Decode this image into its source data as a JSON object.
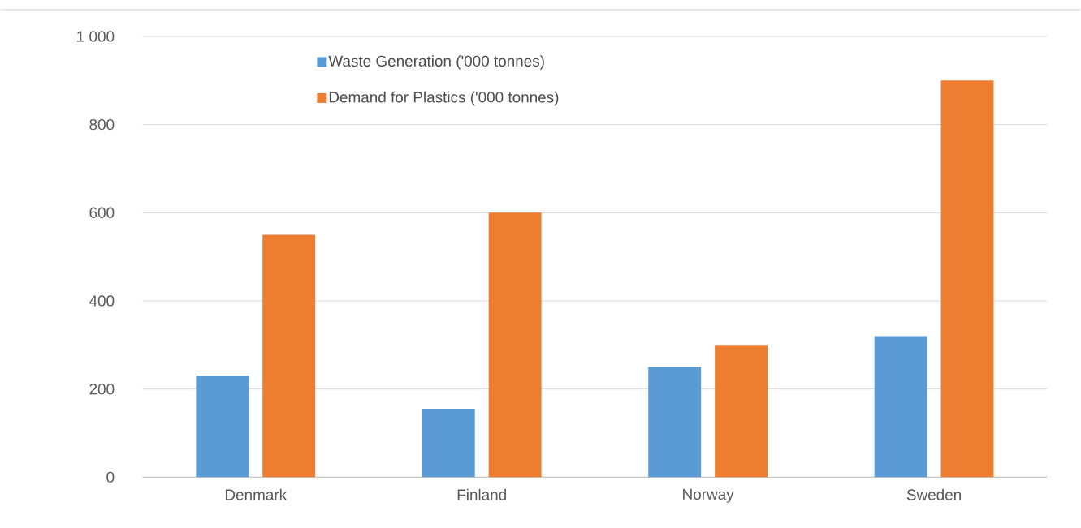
{
  "chart_data": {
    "type": "bar",
    "categories": [
      "Denmark",
      "Finland",
      "Norway",
      "Sweden"
    ],
    "series": [
      {
        "name": "Waste Generation ('000 tonnes)",
        "color": "#5b9bd5",
        "values": [
          230,
          155,
          250,
          320
        ]
      },
      {
        "name": "Demand for Plastics ('000 tonnes)",
        "color": "#ed7d31",
        "values": [
          550,
          600,
          300,
          900
        ]
      }
    ],
    "ylim": [
      0,
      1000
    ],
    "yticks": [
      0,
      200,
      400,
      600,
      800,
      {
        "value": 1000,
        "label": "1 000"
      }
    ],
    "grid": "y",
    "legend": "top"
  }
}
